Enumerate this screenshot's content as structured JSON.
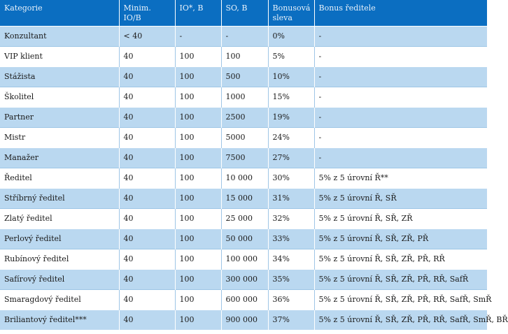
{
  "table": {
    "headers": [
      "Kategorie",
      "Minim. IO/B",
      "IO*, B",
      "SO, B",
      "Bonusová sleva",
      "Bonus ředitele"
    ],
    "rows": [
      [
        "Konzultant",
        "< 40",
        "-",
        "-",
        "0%",
        "-"
      ],
      [
        "VIP klient",
        "40",
        "100",
        "100",
        "5%",
        "-"
      ],
      [
        "Stážista",
        "40",
        "100",
        "500",
        "10%",
        "-"
      ],
      [
        "Školitel",
        "40",
        "100",
        "1000",
        "15%",
        "-"
      ],
      [
        "Partner",
        "40",
        "100",
        "2500",
        "19%",
        "-"
      ],
      [
        "Mistr",
        "40",
        "100",
        "5000",
        "24%",
        "-"
      ],
      [
        "Manažer",
        "40",
        "100",
        "7500",
        "27%",
        "-"
      ],
      [
        "Ředitel",
        "40",
        "100",
        "10 000",
        "30%",
        "5% z 5 úrovní Ř**"
      ],
      [
        "Stříbrný ředitel",
        "40",
        "100",
        "15 000",
        "31%",
        "5% z 5 úrovní Ř, SŘ"
      ],
      [
        "Zlatý ředitel",
        "40",
        "100",
        "25 000",
        "32%",
        "5% z 5 úrovní Ř, SŘ, ZŘ"
      ],
      [
        "Perlový ředitel",
        "40",
        "100",
        "50 000",
        "33%",
        "5% z 5 úrovní Ř, SŘ, ZŘ, PŘ"
      ],
      [
        "Rubínový ředitel",
        "40",
        "100",
        "100 000",
        "34%",
        "5% z 5 úrovní Ř, SŘ, ZŘ, PŘ, RŘ"
      ],
      [
        "Safírový ředitel",
        "40",
        "100",
        "300 000",
        "35%",
        "5% z 5 úrovní Ř, SŘ, ZŘ, PŘ, RŘ, SafŘ"
      ],
      [
        "Smaragdový ředitel",
        "40",
        "100",
        "600 000",
        "36%",
        "5% z 5 úrovní Ř, SŘ, ZŘ, PŘ, RŘ, SafŘ, SmŘ"
      ],
      [
        "Briliantový ředitel***",
        "40",
        "100",
        "900 000",
        "37%",
        "5% z 5 úrovní Ř, SŘ, ZŘ, PŘ, RŘ, SafŘ, SmŘ, BŘ"
      ]
    ]
  }
}
